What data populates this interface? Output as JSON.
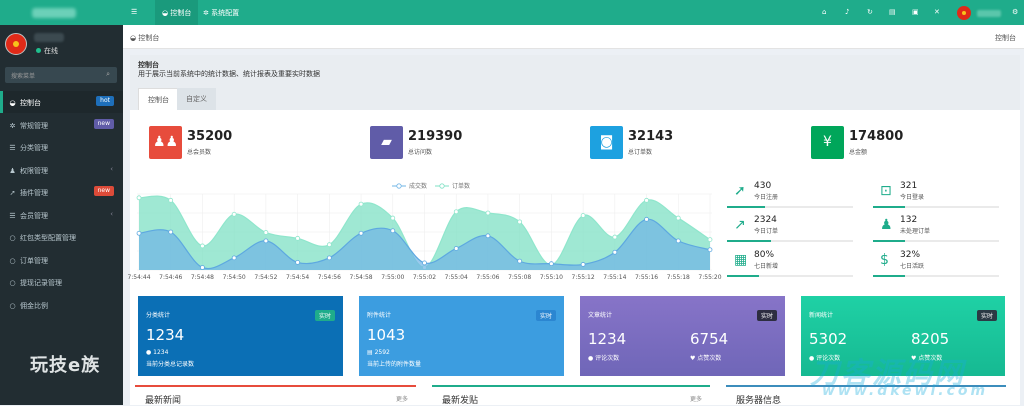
{
  "sidebar": {
    "status": "在线",
    "search_placeholder": "搜索菜单",
    "items": [
      {
        "label": "控制台",
        "badge": "hot",
        "badge_color": "#1e6fba"
      },
      {
        "label": "常规管理",
        "badge": "new",
        "badge_color": "#605ca8"
      },
      {
        "label": "分类管理"
      },
      {
        "label": "权限管理",
        "caret": "‹"
      },
      {
        "label": "插件管理",
        "badge": "new",
        "badge_color": "#dd4b39"
      },
      {
        "label": "会员管理",
        "caret": "‹"
      },
      {
        "label": "红包类型配置管理"
      },
      {
        "label": "订单管理"
      },
      {
        "label": "提现记录管理"
      },
      {
        "label": "佣金比例"
      }
    ],
    "watermark": "玩技e族"
  },
  "topbar": {
    "menu_icon": "hamburger-icon",
    "tabs": [
      "控制台",
      "系统配置"
    ]
  },
  "breadcrumb": {
    "left": "控制台",
    "right": "控制台"
  },
  "header": {
    "title": "控制台",
    "desc": "用于展示当前系统中的统计数据、统计报表及重要实时数据",
    "tabs": [
      "控制台",
      "自定义"
    ]
  },
  "stats": [
    {
      "value": "35200",
      "label": "总会员数",
      "color": "#e74c3c",
      "icon": "users-icon"
    },
    {
      "value": "219390",
      "label": "总访问数",
      "color": "#605ca8",
      "icon": "book-icon"
    },
    {
      "value": "32143",
      "label": "总订单数",
      "color": "#1da1e0",
      "icon": "shopping-bag-icon"
    },
    {
      "value": "174800",
      "label": "总金额",
      "color": "#00a65a",
      "icon": "yen-icon"
    }
  ],
  "chart_data": {
    "type": "area",
    "legend": [
      "成交数",
      "订单数"
    ],
    "legend_position": "top",
    "x": [
      "7:54:44",
      "7:54:46",
      "7:54:48",
      "7:54:50",
      "7:54:52",
      "7:54:54",
      "7:54:56",
      "7:54:58",
      "7:55:00",
      "7:55:02",
      "7:55:04",
      "7:55:06",
      "7:55:08",
      "7:55:10",
      "7:55:12",
      "7:55:14",
      "7:55:16",
      "7:55:18",
      "7:55:20"
    ],
    "series": [
      {
        "name": "成交数",
        "color": "#6fb4e6",
        "values": [
          145,
          150,
          10,
          48,
          115,
          30,
          48,
          145,
          155,
          28,
          85,
          135,
          35,
          25,
          22,
          70,
          200,
          115,
          80
        ]
      },
      {
        "name": "订单数",
        "color": "#7fe0c4",
        "values": [
          285,
          275,
          95,
          220,
          148,
          125,
          100,
          260,
          205,
          10,
          230,
          225,
          190,
          20,
          215,
          130,
          275,
          205,
          120
        ]
      }
    ],
    "grid": true
  },
  "mini_stats": [
    {
      "value": "430",
      "label": "今日注册",
      "icon": "rocket-icon",
      "bar": 0.3
    },
    {
      "value": "321",
      "label": "今日登录",
      "icon": "cart-icon",
      "bar": 0.25
    },
    {
      "value": "2324",
      "label": "今日订单",
      "icon": "chart-line-icon",
      "bar": 0.35
    },
    {
      "value": "132",
      "label": "未处理订单",
      "icon": "users-icon",
      "bar": 0.25
    },
    {
      "value": "80%",
      "label": "七日新增",
      "icon": "calendar-icon",
      "bar": 0.8
    },
    {
      "value": "32%",
      "label": "七日活跃",
      "icon": "dollar-icon",
      "bar": 0.32
    }
  ],
  "cards": [
    {
      "title": "分类统计",
      "badge": "实时",
      "badge_color": "#1fac8b",
      "bg": "#0b6fb5",
      "value": "1234",
      "sub_value": "1234",
      "sub_label": "当前分类总记录数"
    },
    {
      "title": "附件统计",
      "badge": "实时",
      "badge_color": "#3a8ee0",
      "bg": "#3c9de0",
      "value": "1043",
      "sub_value": "2592",
      "sub_label": "当前上传的附件数量"
    },
    {
      "title": "文章统计",
      "badge": "实时",
      "badge_color": "#2d2d40",
      "bg": "#7b6bc0",
      "value": "1234",
      "value2": "6754",
      "sub_label": "评论次数",
      "sub_label2": "点赞次数"
    },
    {
      "title": "新闻统计",
      "badge": "实时",
      "badge_color": "#2b3a44",
      "bg": "#1ccca0",
      "value": "5302",
      "value2": "8205",
      "sub_label": "评论次数",
      "sub_label2": "点赞次数"
    }
  ],
  "bottom": [
    {
      "title": "最新新闻",
      "more": "更多",
      "color": "#e74c3c"
    },
    {
      "title": "最新发贴",
      "more": "更多",
      "color": "#1fac8b"
    },
    {
      "title": "服务器信息",
      "more": "",
      "color": "#3c8dbc"
    }
  ],
  "watermarks": [
    "刀客源码网",
    "www.dkewl.com"
  ]
}
